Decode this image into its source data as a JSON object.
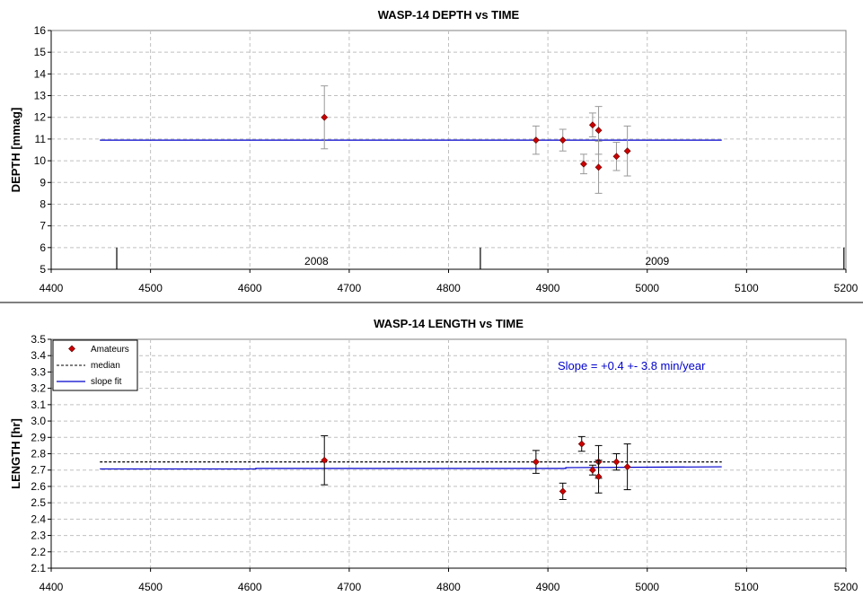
{
  "colors": {
    "marker": "#cc0000",
    "fit": "#0000cc",
    "median": "#000000",
    "errorbar_top": "#999999",
    "errorbar_bottom": "#000000",
    "grid": "#c0c0c0",
    "annotation": "#0000cc"
  },
  "chart_data": [
    {
      "type": "scatter",
      "title": "WASP-14 DEPTH vs TIME",
      "xlabel": "",
      "ylabel": "DEPTH [mmag]",
      "xlim": [
        4400,
        5200
      ],
      "ylim": [
        5,
        16
      ],
      "xticks": [
        4400,
        4500,
        4600,
        4700,
        4800,
        4900,
        5000,
        5100,
        5200
      ],
      "yticks": [
        5,
        6,
        7,
        8,
        9,
        10,
        11,
        12,
        13,
        14,
        15,
        16
      ],
      "grid": true,
      "series": [
        {
          "kind": "errorbar",
          "x": [
            4675,
            4888,
            4915,
            4936,
            4945,
            4951,
            4951,
            4969,
            4980
          ],
          "y": [
            12.0,
            10.95,
            10.95,
            9.85,
            11.65,
            11.4,
            9.7,
            10.2,
            10.45
          ],
          "err": [
            1.45,
            0.65,
            0.5,
            0.45,
            0.55,
            1.1,
            1.2,
            0.65,
            1.15
          ]
        },
        {
          "kind": "line",
          "x": [
            4449,
            5075
          ],
          "y": [
            10.95,
            10.95
          ]
        }
      ],
      "year_markers": [
        {
          "label": "2008",
          "x": 4466
        },
        {
          "label": "2009",
          "x": 4832
        },
        {
          "label": "",
          "x": 5198
        }
      ],
      "year_labels": [
        {
          "label": "2008",
          "x": 4667
        },
        {
          "label": "2009",
          "x": 5010
        }
      ]
    },
    {
      "type": "scatter",
      "title": "WASP-14 LENGTH vs TIME",
      "xlabel": "",
      "ylabel": "LENGTH [hr]",
      "xlim": [
        4400,
        5200
      ],
      "ylim": [
        2.1,
        3.5
      ],
      "xticks": [
        4400,
        4500,
        4600,
        4700,
        4800,
        4900,
        5000,
        5100,
        5200
      ],
      "yticks": [
        2.1,
        2.2,
        2.3,
        2.4,
        2.5,
        2.6,
        2.7,
        2.8,
        2.9,
        3.0,
        3.1,
        3.2,
        3.3,
        3.4,
        3.5
      ],
      "grid": true,
      "legend": {
        "position": "top-left",
        "entries": [
          "Amateurs",
          "median",
          "slope fit"
        ]
      },
      "annotation": "Slope = +0.4 +- 3.8 min/year",
      "series": [
        {
          "name": "Amateurs",
          "kind": "errorbar",
          "x": [
            4675,
            4888,
            4915,
            4934,
            4945,
            4951,
            4951,
            4969,
            4980
          ],
          "y": [
            2.76,
            2.75,
            2.57,
            2.86,
            2.7,
            2.75,
            2.66,
            2.75,
            2.72
          ],
          "err": [
            0.15,
            0.07,
            0.05,
            0.045,
            0.03,
            0.1,
            0.1,
            0.05,
            0.14
          ]
        },
        {
          "name": "median",
          "kind": "dashed-line",
          "x": [
            4449,
            5075
          ],
          "y": [
            2.75,
            2.75
          ]
        },
        {
          "name": "slope fit",
          "kind": "line",
          "x": [
            4449,
            4606,
            4606,
            4918,
            4918,
            5075
          ],
          "y": [
            2.707,
            2.707,
            2.71,
            2.71,
            2.715,
            2.72
          ]
        }
      ]
    }
  ]
}
